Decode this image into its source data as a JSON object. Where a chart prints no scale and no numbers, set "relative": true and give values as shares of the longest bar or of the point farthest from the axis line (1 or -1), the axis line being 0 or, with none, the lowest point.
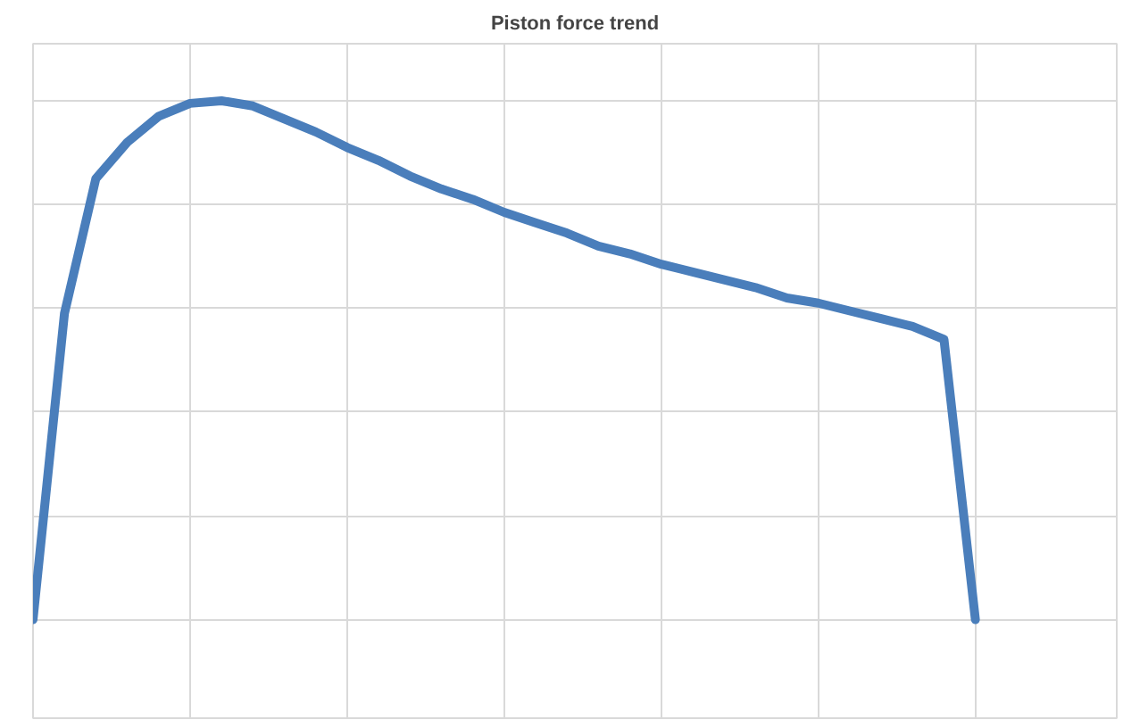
{
  "chart_data": {
    "type": "line",
    "title": "Piston force trend",
    "relative": true,
    "grid": true,
    "categories": [
      null,
      null,
      null,
      null,
      null,
      null,
      null,
      null,
      null,
      null,
      null,
      null,
      null,
      null,
      null,
      null,
      null,
      null,
      null,
      null,
      null,
      null,
      null,
      null,
      null,
      null,
      null,
      null,
      null,
      null,
      null
    ],
    "series": [
      {
        "color": "#4a7ebb",
        "values": [
          0,
          0.59,
          0.85,
          0.92,
          0.97,
          0.995,
          1.0,
          0.99,
          0.965,
          0.94,
          0.91,
          0.885,
          0.855,
          0.83,
          0.81,
          0.785,
          0.765,
          0.745,
          0.72,
          0.705,
          0.685,
          0.67,
          0.655,
          0.64,
          0.62,
          0.61,
          0.595,
          0.58,
          0.565,
          0.54,
          0
        ]
      }
    ]
  }
}
